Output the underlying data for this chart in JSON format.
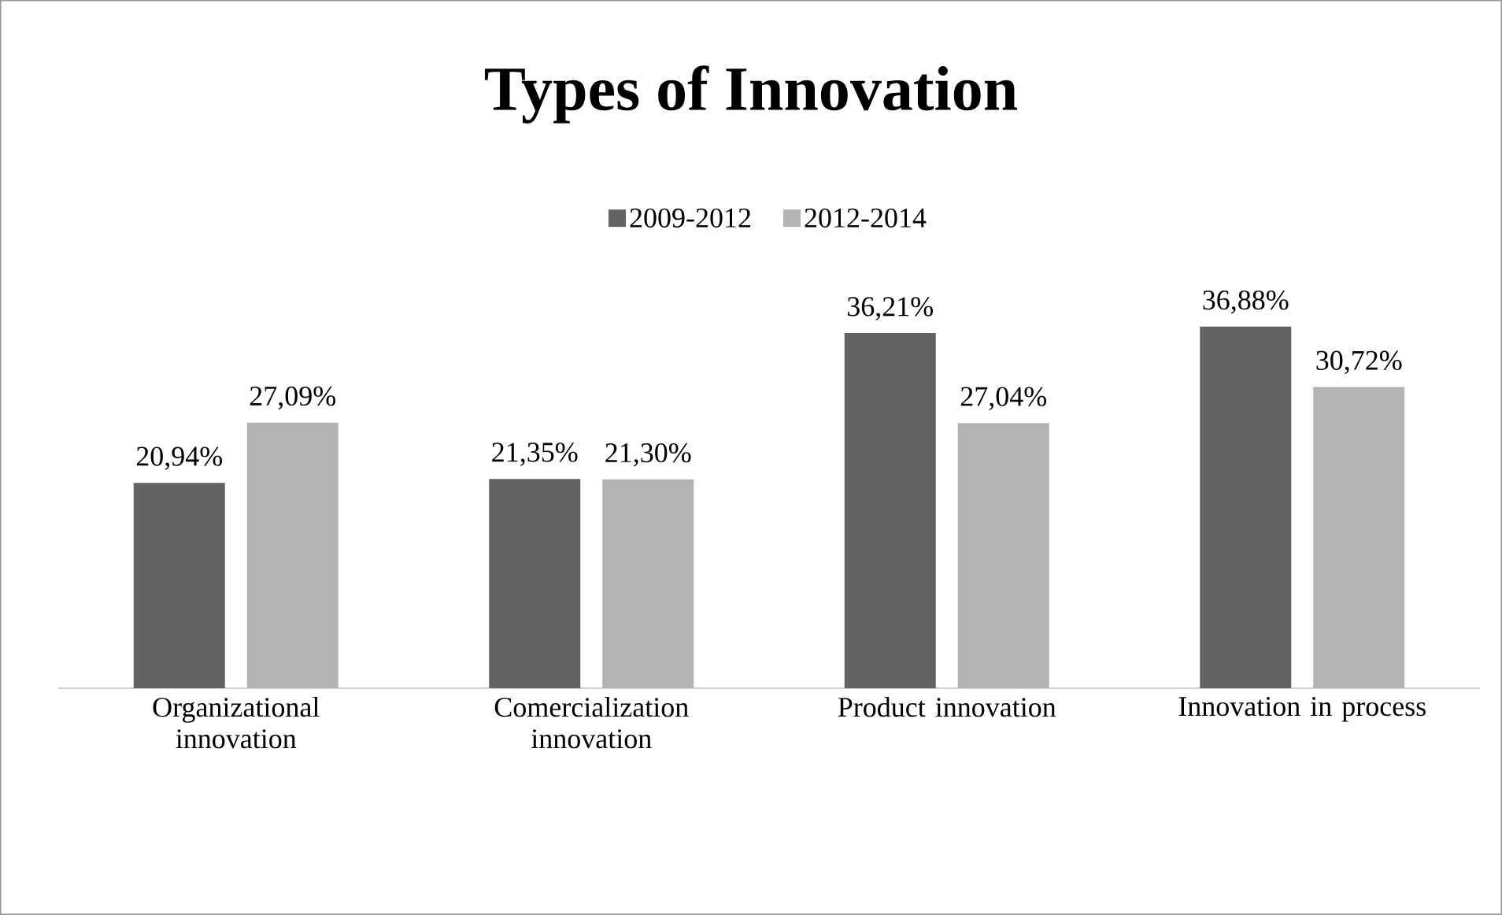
{
  "chart_data": {
    "type": "bar",
    "title": "Types of Innovation",
    "categories": [
      "Organizational innovation",
      "Comercialization innovation",
      "Product innovation",
      "Innovation in process"
    ],
    "series": [
      {
        "name": "2009-2012",
        "color": "#636363",
        "values": [
          20.94,
          21.35,
          36.21,
          36.88
        ],
        "value_labels": [
          "20,94%",
          "21,35%",
          "36,21%",
          "36,88%"
        ]
      },
      {
        "name": "2012-2014",
        "color": "#b3b3b3",
        "values": [
          27.09,
          21.3,
          27.04,
          30.72
        ],
        "value_labels": [
          "27,09%",
          "21,30%",
          "27,04%",
          "30,72%"
        ]
      }
    ],
    "legend": "top"
  }
}
